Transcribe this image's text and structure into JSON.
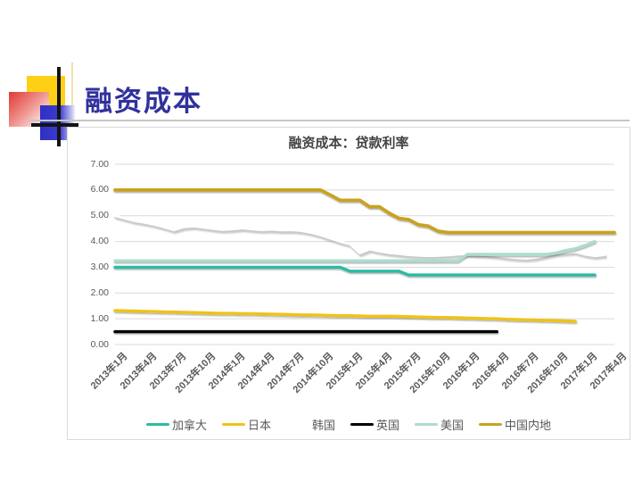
{
  "slide": {
    "title": "融资成本"
  },
  "colors": {
    "slide_title": "#31319C",
    "chart_text": "#595959",
    "gridline": "#D9D9D9",
    "deco_yellow": "#FFCF16",
    "deco_red": "#DF3A36",
    "deco_blue": "#2F2FC4"
  },
  "chart_data": {
    "type": "line",
    "title": "融资成本：贷款利率",
    "xlabel": "",
    "ylabel": "",
    "ylim": [
      0,
      7
    ],
    "yticks": [
      "0.00",
      "1.00",
      "2.00",
      "3.00",
      "4.00",
      "5.00",
      "6.00",
      "7.00"
    ],
    "grid": "horizontal",
    "legend_position": "bottom",
    "tick_interval": 3,
    "categories": [
      "2013年1月",
      "2013年2月",
      "2013年3月",
      "2013年4月",
      "2013年5月",
      "2013年6月",
      "2013年7月",
      "2013年8月",
      "2013年9月",
      "2013年10月",
      "2013年11月",
      "2013年12月",
      "2014年1月",
      "2014年2月",
      "2014年3月",
      "2014年4月",
      "2014年5月",
      "2014年6月",
      "2014年7月",
      "2014年8月",
      "2014年9月",
      "2014年10月",
      "2014年11月",
      "2014年12月",
      "2015年1月",
      "2015年2月",
      "2015年3月",
      "2015年4月",
      "2015年5月",
      "2015年6月",
      "2015年7月",
      "2015年8月",
      "2015年9月",
      "2015年10月",
      "2015年11月",
      "2015年12月",
      "2016年1月",
      "2016年2月",
      "2016年3月",
      "2016年4月",
      "2016年5月",
      "2016年6月",
      "2016年7月",
      "2016年8月",
      "2016年9月",
      "2016年10月",
      "2016年11月",
      "2016年12月",
      "2017年1月",
      "2017年2月",
      "2017年3月",
      "2017年4月"
    ],
    "series": [
      {
        "name": "加拿大",
        "color": "#2BBBA3",
        "width": 3.4,
        "values": [
          3.0,
          3.0,
          3.0,
          3.0,
          3.0,
          3.0,
          3.0,
          3.0,
          3.0,
          3.0,
          3.0,
          3.0,
          3.0,
          3.0,
          3.0,
          3.0,
          3.0,
          3.0,
          3.0,
          3.0,
          3.0,
          3.0,
          3.0,
          3.0,
          2.85,
          2.85,
          2.85,
          2.85,
          2.85,
          2.85,
          2.7,
          2.7,
          2.7,
          2.7,
          2.7,
          2.7,
          2.7,
          2.7,
          2.7,
          2.7,
          2.7,
          2.7,
          2.7,
          2.7,
          2.7,
          2.7,
          2.7,
          2.7,
          2.7,
          2.7,
          null,
          null
        ]
      },
      {
        "name": "日本",
        "color": "#EFC319",
        "width": 3.4,
        "values": [
          1.32,
          1.31,
          1.3,
          1.29,
          1.28,
          1.27,
          1.26,
          1.25,
          1.24,
          1.23,
          1.22,
          1.21,
          1.21,
          1.2,
          1.2,
          1.19,
          1.18,
          1.17,
          1.16,
          1.15,
          1.15,
          1.14,
          1.13,
          1.12,
          1.12,
          1.11,
          1.1,
          1.1,
          1.1,
          1.09,
          1.08,
          1.07,
          1.06,
          1.05,
          1.05,
          1.04,
          1.03,
          1.02,
          1.01,
          1.0,
          0.98,
          0.97,
          0.96,
          0.95,
          0.94,
          0.93,
          0.92,
          0.9,
          null,
          null,
          null,
          null
        ]
      },
      {
        "name": "韩国",
        "color": "#FFFFFF",
        "width": 2.8,
        "shadow": true,
        "values": [
          5.0,
          4.9,
          4.8,
          4.74,
          4.66,
          4.56,
          4.45,
          4.56,
          4.6,
          4.55,
          4.5,
          4.46,
          4.48,
          4.52,
          4.48,
          4.45,
          4.47,
          4.44,
          4.45,
          4.42,
          4.35,
          4.25,
          4.12,
          4.0,
          3.9,
          3.55,
          3.7,
          3.62,
          3.56,
          3.52,
          3.48,
          3.46,
          3.44,
          3.45,
          3.47,
          3.5,
          3.52,
          3.5,
          3.48,
          3.45,
          3.4,
          3.36,
          3.34,
          3.38,
          3.46,
          3.54,
          3.58,
          3.6,
          3.5,
          3.44,
          3.48,
          null
        ]
      },
      {
        "name": "英国",
        "color": "#000000",
        "width": 3.4,
        "values": [
          0.5,
          0.5,
          0.5,
          0.5,
          0.5,
          0.5,
          0.5,
          0.5,
          0.5,
          0.5,
          0.5,
          0.5,
          0.5,
          0.5,
          0.5,
          0.5,
          0.5,
          0.5,
          0.5,
          0.5,
          0.5,
          0.5,
          0.5,
          0.5,
          0.5,
          0.5,
          0.5,
          0.5,
          0.5,
          0.5,
          0.5,
          0.5,
          0.5,
          0.5,
          0.5,
          0.5,
          0.5,
          0.5,
          0.5,
          0.5,
          null,
          null,
          null,
          null,
          null,
          null,
          null,
          null,
          null,
          null,
          null,
          null
        ]
      },
      {
        "name": "美国",
        "color": "#ABDCCE",
        "width": 3.4,
        "values": [
          3.25,
          3.25,
          3.25,
          3.25,
          3.25,
          3.25,
          3.25,
          3.25,
          3.25,
          3.25,
          3.25,
          3.25,
          3.25,
          3.25,
          3.25,
          3.25,
          3.25,
          3.25,
          3.25,
          3.25,
          3.25,
          3.25,
          3.25,
          3.25,
          3.25,
          3.25,
          3.25,
          3.25,
          3.25,
          3.25,
          3.25,
          3.25,
          3.25,
          3.25,
          3.25,
          3.25,
          3.5,
          3.5,
          3.5,
          3.5,
          3.5,
          3.5,
          3.5,
          3.5,
          3.5,
          3.55,
          3.65,
          3.72,
          3.85,
          4.0,
          null,
          null
        ]
      },
      {
        "name": "中国内地",
        "color": "#C8A224",
        "width": 3.8,
        "values": [
          6.0,
          6.0,
          6.0,
          6.0,
          6.0,
          6.0,
          6.0,
          6.0,
          6.0,
          6.0,
          6.0,
          6.0,
          6.0,
          6.0,
          6.0,
          6.0,
          6.0,
          6.0,
          6.0,
          6.0,
          6.0,
          6.0,
          5.8,
          5.6,
          5.6,
          5.6,
          5.35,
          5.35,
          5.1,
          4.9,
          4.85,
          4.65,
          4.6,
          4.4,
          4.35,
          4.35,
          4.35,
          4.35,
          4.35,
          4.35,
          4.35,
          4.35,
          4.35,
          4.35,
          4.35,
          4.35,
          4.35,
          4.35,
          4.35,
          4.35,
          4.35,
          4.35
        ]
      }
    ]
  }
}
